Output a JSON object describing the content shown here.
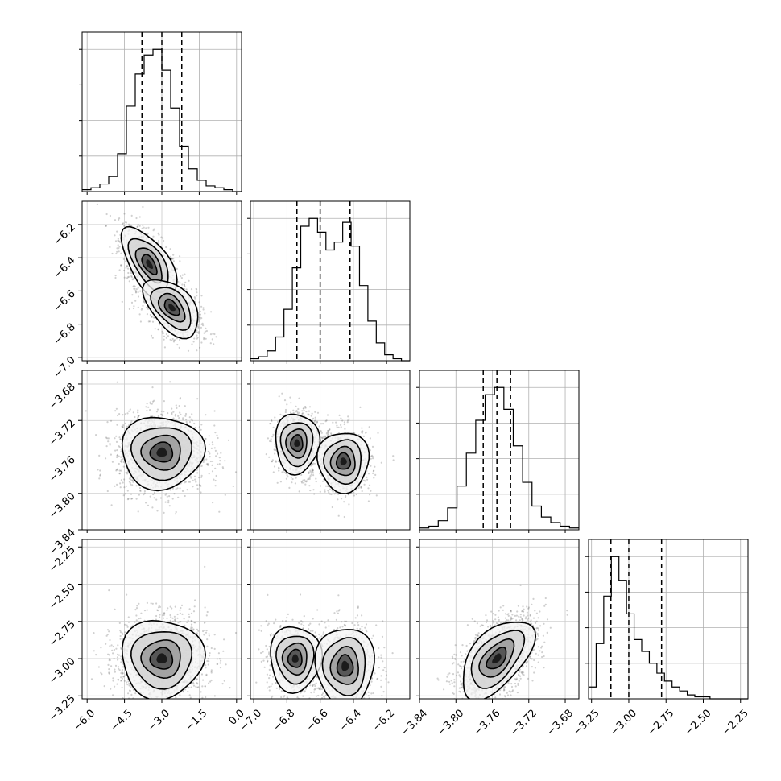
{
  "chart_data": {
    "type": "corner",
    "title": "",
    "parameters": [
      {
        "index": 0,
        "range": [
          -6.2,
          0.2
        ],
        "ticks": [
          -6.0,
          -4.5,
          -3.0,
          -1.5,
          0.0
        ],
        "tick_labels": [
          "−6.0",
          "−4.5",
          "−3.0",
          "−1.5",
          "0.0"
        ],
        "quantiles": [
          -3.8,
          -3.0,
          -2.2
        ],
        "mean": -3.0,
        "sd": 0.78
      },
      {
        "index": 1,
        "range": [
          -7.02,
          -6.06
        ],
        "ticks": [
          -7.0,
          -6.8,
          -6.6,
          -6.4,
          -6.2
        ],
        "tick_labels": [
          "−7.0",
          "−6.8",
          "−6.6",
          "−6.4",
          "−6.2"
        ],
        "quantiles": [
          -6.74,
          -6.6,
          -6.42
        ],
        "mean": -6.58,
        "sd": 0.13
      },
      {
        "index": 2,
        "range": [
          -3.84,
          -3.665
        ],
        "ticks": [
          -3.84,
          -3.8,
          -3.76,
          -3.72,
          -3.68
        ],
        "tick_labels": [
          "−3.84",
          "−3.80",
          "−3.76",
          "−3.72",
          "−3.68"
        ],
        "quantiles": [
          -3.77,
          -3.755,
          -3.74
        ],
        "mean": -3.755,
        "sd": 0.018
      },
      {
        "index": 3,
        "range": [
          -3.27,
          -2.2
        ],
        "ticks": [
          -3.25,
          -3.0,
          -2.75,
          -2.5,
          -2.25
        ],
        "tick_labels": [
          "−3.25",
          "−3.00",
          "−2.75",
          "−2.50",
          "−2.25"
        ],
        "quantiles": [
          -3.12,
          -3.0,
          -2.78
        ],
        "mean": -2.98,
        "sd": 0.13
      }
    ],
    "histograms": [
      {
        "param": 0,
        "edges": [
          -6.2,
          0.2
        ],
        "counts": [
          1,
          2,
          4,
          8,
          20,
          45,
          62,
          72,
          75,
          64,
          44,
          24,
          12,
          6,
          3,
          2,
          1,
          0
        ]
      },
      {
        "param": 1,
        "edges": [
          -7.02,
          -6.06
        ],
        "counts": [
          1,
          2,
          5,
          12,
          26,
          47,
          68,
          72,
          65,
          56,
          60,
          70,
          58,
          38,
          20,
          9,
          3,
          1,
          0
        ]
      },
      {
        "param": 2,
        "edges": [
          -3.84,
          -3.665
        ],
        "counts": [
          1,
          2,
          5,
          12,
          24,
          42,
          60,
          74,
          78,
          66,
          46,
          26,
          13,
          7,
          4,
          2,
          1
        ]
      },
      {
        "param": 3,
        "edges": [
          -3.27,
          -2.2
        ],
        "counts": [
          6,
          28,
          52,
          72,
          60,
          43,
          30,
          24,
          18,
          13,
          9,
          6,
          4,
          2,
          1,
          1,
          0,
          0,
          0,
          0,
          0
        ]
      }
    ],
    "pairs": [
      {
        "x": 0,
        "y": 1,
        "modes": [
          {
            "cx": -3.5,
            "cy": -6.44,
            "sx": 0.5,
            "sy": 0.1,
            "rho": -0.6
          },
          {
            "cx": -2.6,
            "cy": -6.7,
            "sx": 0.5,
            "sy": 0.08,
            "rho": -0.5
          }
        ]
      },
      {
        "x": 0,
        "y": 2,
        "modes": [
          {
            "cx": -3.0,
            "cy": -3.755,
            "sx": 0.75,
            "sy": 0.018,
            "rho": 0.0
          }
        ]
      },
      {
        "x": 1,
        "y": 2,
        "modes": [
          {
            "cx": -6.74,
            "cy": -3.745,
            "sx": 0.06,
            "sy": 0.015,
            "rho": 0.0
          },
          {
            "cx": -6.46,
            "cy": -3.765,
            "sx": 0.07,
            "sy": 0.015,
            "rho": 0.0
          }
        ]
      },
      {
        "x": 0,
        "y": 3,
        "modes": [
          {
            "cx": -3.0,
            "cy": -3.0,
            "sx": 0.75,
            "sy": 0.12,
            "rho": 0.0
          }
        ]
      },
      {
        "x": 1,
        "y": 3,
        "modes": [
          {
            "cx": -6.75,
            "cy": -3.0,
            "sx": 0.07,
            "sy": 0.1,
            "rho": 0.0
          },
          {
            "cx": -6.45,
            "cy": -3.05,
            "sx": 0.08,
            "sy": 0.12,
            "rho": 0.0
          }
        ]
      },
      {
        "x": 2,
        "y": 3,
        "modes": [
          {
            "cx": -3.755,
            "cy": -3.0,
            "sx": 0.018,
            "sy": 0.12,
            "rho": 0.55
          }
        ]
      }
    ],
    "grid": true,
    "quantile_line_style": "dashed"
  }
}
